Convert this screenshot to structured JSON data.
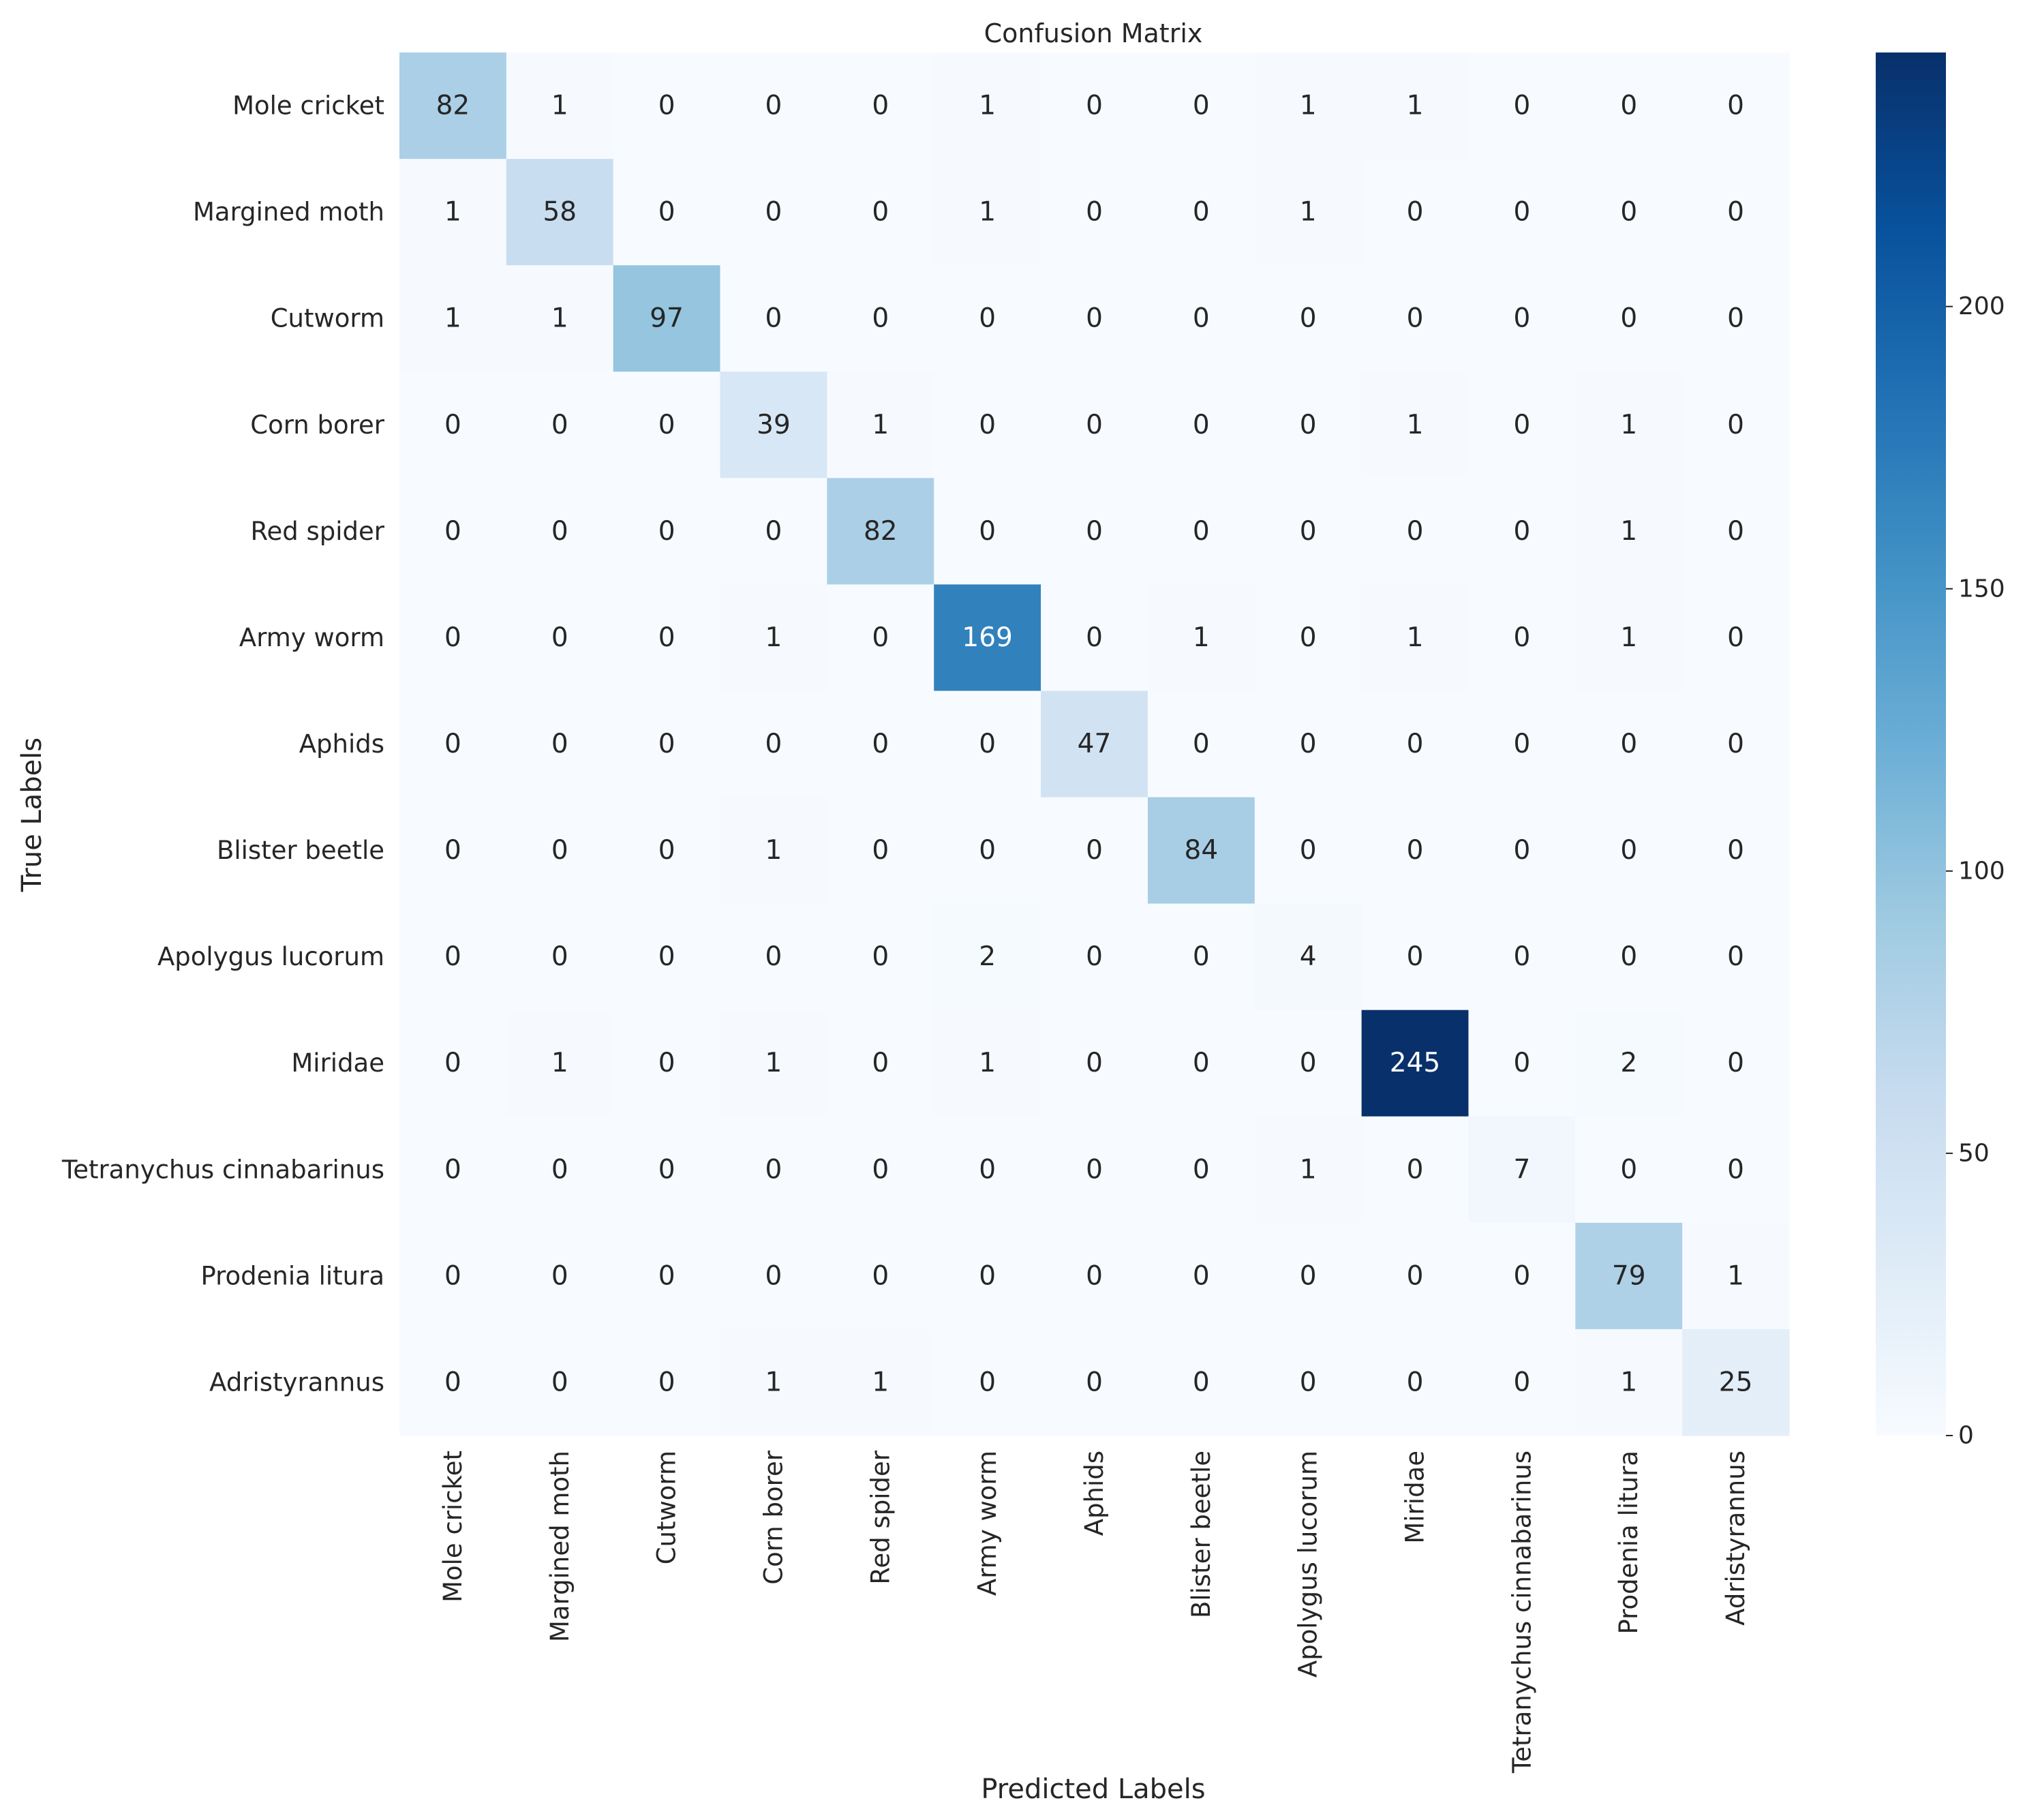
{
  "chart_data": {
    "type": "heatmap",
    "title": "Confusion Matrix",
    "xlabel": "Predicted Labels",
    "ylabel": "True Labels",
    "row_labels": [
      "Mole cricket",
      "Margined moth",
      "Cutworm",
      "Corn borer",
      "Red spider",
      "Army worm",
      "Aphids",
      "Blister beetle",
      "Apolygus lucorum",
      "Miridae",
      "Tetranychus cinnabarinus",
      "Prodenia litura",
      "Adristyrannus"
    ],
    "col_labels": [
      "Mole cricket",
      "Margined moth",
      "Cutworm",
      "Corn borer",
      "Red spider",
      "Army worm",
      "Aphids",
      "Blister beetle",
      "Apolygus lucorum",
      "Miridae",
      "Tetranychus cinnabarinus",
      "Prodenia litura",
      "Adristyrannus"
    ],
    "matrix": [
      [
        82,
        1,
        0,
        0,
        0,
        1,
        0,
        0,
        1,
        1,
        0,
        0,
        0
      ],
      [
        1,
        58,
        0,
        0,
        0,
        1,
        0,
        0,
        1,
        0,
        0,
        0,
        0
      ],
      [
        1,
        1,
        97,
        0,
        0,
        0,
        0,
        0,
        0,
        0,
        0,
        0,
        0
      ],
      [
        0,
        0,
        0,
        39,
        1,
        0,
        0,
        0,
        0,
        1,
        0,
        1,
        0
      ],
      [
        0,
        0,
        0,
        0,
        82,
        0,
        0,
        0,
        0,
        0,
        0,
        1,
        0
      ],
      [
        0,
        0,
        0,
        1,
        0,
        169,
        0,
        1,
        0,
        1,
        0,
        1,
        0
      ],
      [
        0,
        0,
        0,
        0,
        0,
        0,
        47,
        0,
        0,
        0,
        0,
        0,
        0
      ],
      [
        0,
        0,
        0,
        1,
        0,
        0,
        0,
        84,
        0,
        0,
        0,
        0,
        0
      ],
      [
        0,
        0,
        0,
        0,
        0,
        2,
        0,
        0,
        4,
        0,
        0,
        0,
        0
      ],
      [
        0,
        1,
        0,
        1,
        0,
        1,
        0,
        0,
        0,
        245,
        0,
        2,
        0
      ],
      [
        0,
        0,
        0,
        0,
        0,
        0,
        0,
        0,
        1,
        0,
        7,
        0,
        0
      ],
      [
        0,
        0,
        0,
        0,
        0,
        0,
        0,
        0,
        0,
        0,
        0,
        79,
        1
      ],
      [
        0,
        0,
        0,
        1,
        1,
        0,
        0,
        0,
        0,
        0,
        0,
        1,
        25
      ]
    ],
    "colormap": "Blues",
    "colorbar": {
      "vmin": 0,
      "vmax": 245,
      "ticks": [
        0,
        50,
        100,
        150,
        200
      ]
    },
    "grid": false
  }
}
